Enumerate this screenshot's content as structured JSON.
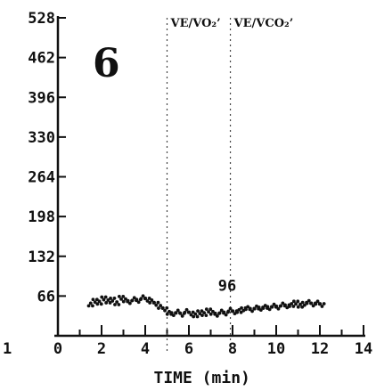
{
  "chart_data": {
    "type": "scatter",
    "panel_label": "6",
    "xlabel": "TIME (min)",
    "ylabel": "",
    "xlim": [
      0,
      14
    ],
    "ylim": [
      0,
      528
    ],
    "x_ticks": [
      "1",
      "0",
      "2",
      "4",
      "6",
      "8",
      "10",
      "12",
      "14"
    ],
    "y_ticks": [
      "528",
      "462",
      "396",
      "330",
      "264",
      "198",
      "132",
      "66"
    ],
    "markers": [
      {
        "label": "VE/VO₂’",
        "x": 5.0
      },
      {
        "label": "VE/VCO₂’",
        "x": 7.9
      }
    ],
    "value_annotation": {
      "text": "96",
      "x": 7.5,
      "y": 60
    },
    "series": [
      {
        "x": [
          1.5,
          1.7,
          1.9,
          2.1,
          2.3,
          2.5,
          2.7,
          2.9,
          3.1,
          3.3,
          3.5,
          3.7,
          3.9,
          4.1,
          4.3,
          4.5,
          4.7,
          4.9,
          5.1,
          5.3,
          5.5,
          5.7,
          5.9,
          6.1,
          6.3,
          6.5,
          6.7,
          6.9,
          7.1,
          7.3,
          7.5,
          7.7,
          7.9,
          8.1,
          8.3,
          8.5,
          8.7,
          8.9,
          9.1,
          9.3,
          9.5,
          9.7,
          9.9,
          10.1,
          10.3,
          10.5,
          10.7,
          10.9,
          11.1,
          11.3,
          11.5,
          11.7,
          11.9,
          12.1
        ],
        "y": [
          52,
          58,
          55,
          62,
          57,
          60,
          54,
          63,
          59,
          56,
          61,
          58,
          64,
          60,
          57,
          53,
          48,
          44,
          38,
          36,
          40,
          35,
          41,
          37,
          34,
          39,
          36,
          42,
          38,
          35,
          40,
          37,
          43,
          39,
          41,
          44,
          46,
          43,
          47,
          45,
          48,
          46,
          50,
          47,
          52,
          49,
          51,
          55,
          50,
          53,
          56,
          52,
          55,
          51
        ]
      }
    ]
  }
}
